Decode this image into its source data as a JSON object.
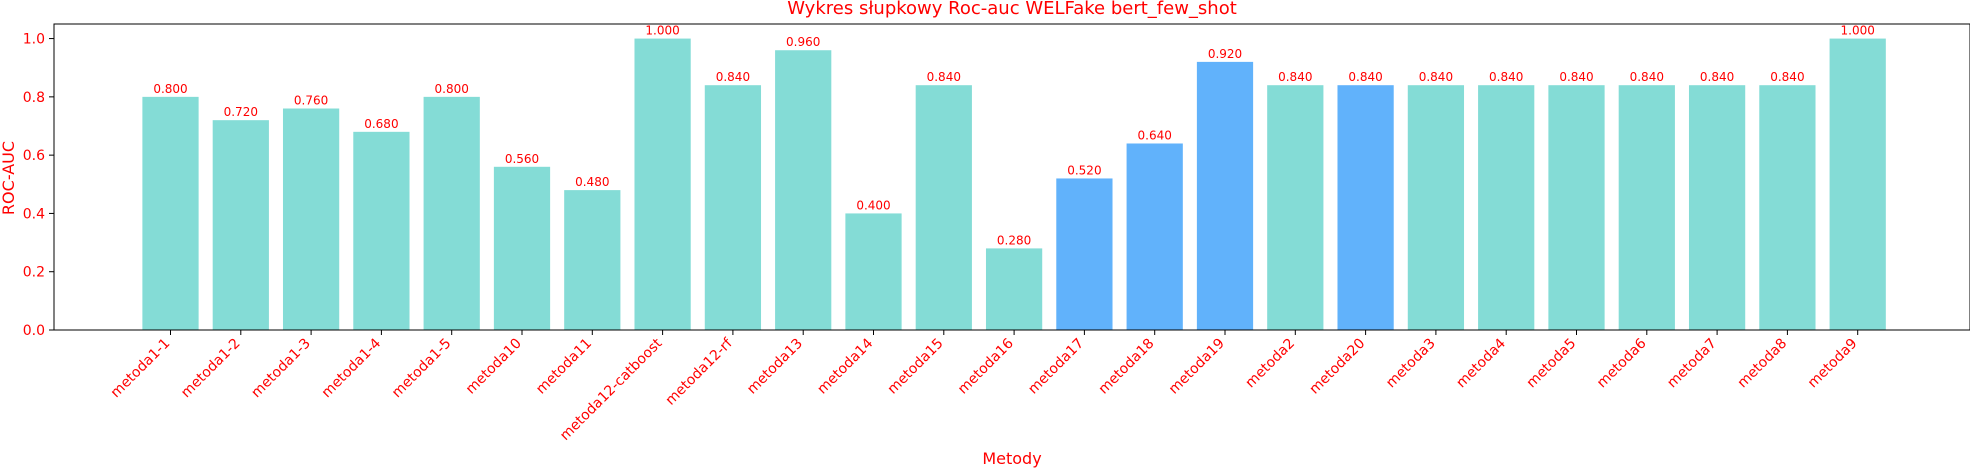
{
  "chart_data": {
    "type": "bar",
    "title": "Wykres słupkowy Roc-auc WELFake bert_few_shot",
    "xlabel": "Metody",
    "ylabel": "ROC-AUC",
    "ylim": [
      0,
      1.05
    ],
    "yticks": [
      "0.0",
      "0.2",
      "0.4",
      "0.6",
      "0.8",
      "1.0"
    ],
    "grid": false,
    "categories": [
      "metoda1-1",
      "metoda1-2",
      "metoda1-3",
      "metoda1-4",
      "metoda1-5",
      "metoda10",
      "metoda11",
      "metoda12-catboost",
      "metoda12-rf",
      "metoda13",
      "metoda14",
      "metoda15",
      "metoda16",
      "metoda17",
      "metoda18",
      "metoda19",
      "metoda2",
      "metoda20",
      "metoda3",
      "metoda4",
      "metoda5",
      "metoda6",
      "metoda7",
      "metoda8",
      "metoda9"
    ],
    "values": [
      0.8,
      0.72,
      0.76,
      0.68,
      0.8,
      0.56,
      0.48,
      1.0,
      0.84,
      0.96,
      0.4,
      0.84,
      0.28,
      0.52,
      0.64,
      0.92,
      0.84,
      0.84,
      0.84,
      0.84,
      0.84,
      0.84,
      0.84,
      0.84,
      1.0
    ],
    "value_labels": [
      "0.800",
      "0.720",
      "0.760",
      "0.680",
      "0.800",
      "0.560",
      "0.480",
      "1.000",
      "0.840",
      "0.960",
      "0.400",
      "0.840",
      "0.280",
      "0.520",
      "0.640",
      "0.920",
      "0.840",
      "0.840",
      "0.840",
      "0.840",
      "0.840",
      "0.840",
      "0.840",
      "0.840",
      "1.000"
    ],
    "highlighted": [
      "metoda17",
      "metoda18",
      "metoda19",
      "metoda20"
    ],
    "colors": {
      "bar": "#84dcd6",
      "bar_highlight": "#61b2fb",
      "text": "#ff0000",
      "axis": "#000000"
    }
  }
}
